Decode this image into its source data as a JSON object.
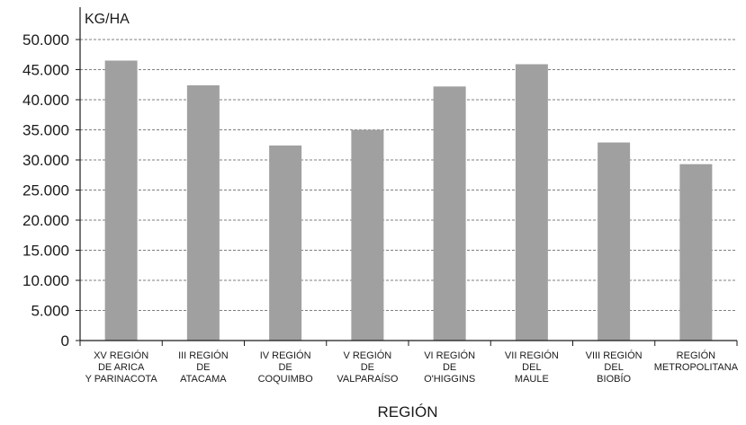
{
  "chart_data": {
    "type": "bar",
    "ylabel": "KG/HA",
    "xlabel": "REGIÓN",
    "ylim": [
      0,
      50000
    ],
    "yticks": [
      0,
      5000,
      10000,
      15000,
      20000,
      25000,
      30000,
      35000,
      40000,
      45000,
      50000
    ],
    "ytick_labels": [
      "0",
      "5.000",
      "10.000",
      "15.000",
      "20.000",
      "25.000",
      "30.000",
      "35.000",
      "40.000",
      "45.000",
      "50.000"
    ],
    "grid": true,
    "categories": [
      [
        "XV REGIÓN",
        "DE ARICA",
        "Y PARINACOTA"
      ],
      [
        "III REGIÓN",
        "DE",
        "ATACAMA"
      ],
      [
        "IV REGIÓN",
        "DE",
        "COQUIMBO"
      ],
      [
        "V REGIÓN",
        "DE",
        "VALPARAÍSO"
      ],
      [
        "VI REGIÓN",
        "DE",
        "O'HIGGINS"
      ],
      [
        "VII REGIÓN",
        "DEL",
        "MAULE"
      ],
      [
        "VIII REGIÓN",
        "DEL",
        "BIOBÍO"
      ],
      [
        "REGIÓN",
        "METROPOLITANA"
      ]
    ],
    "values": [
      46500,
      42400,
      32400,
      35000,
      42200,
      45900,
      32900,
      29300
    ],
    "colors": {
      "bar": "#a0a0a0",
      "axis": "#1a1a1a",
      "grid": "#555555"
    }
  }
}
